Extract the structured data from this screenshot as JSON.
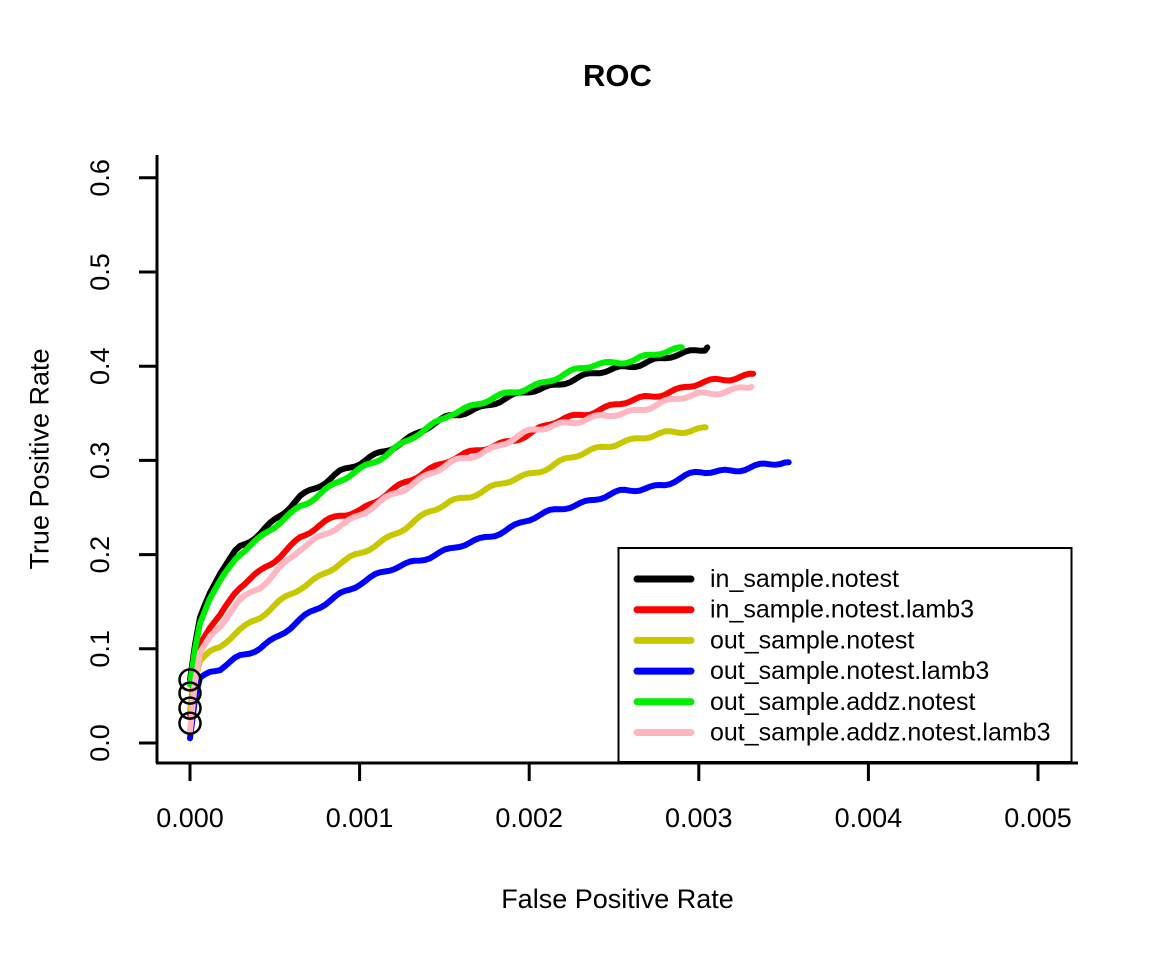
{
  "page": {
    "background": "#ffffff"
  },
  "chart_data": {
    "type": "line",
    "title": "ROC",
    "xlabel": "False Positive Rate",
    "ylabel": "True Positive Rate",
    "xlim": [
      -0.0002,
      0.00524
    ],
    "ylim": [
      -0.021,
      0.625
    ],
    "grid": false,
    "x_ticks": {
      "values": [
        0.0,
        0.001,
        0.002,
        0.003,
        0.004,
        0.005
      ],
      "labels": [
        "0.000",
        "0.001",
        "0.002",
        "0.003",
        "0.004",
        "0.005"
      ]
    },
    "y_ticks": {
      "values": [
        0.0,
        0.1,
        0.2,
        0.3,
        0.4,
        0.5,
        0.6
      ],
      "labels": [
        "0.0",
        "0.1",
        "0.2",
        "0.3",
        "0.4",
        "0.5",
        "0.6"
      ]
    },
    "legend": {
      "position": "bottomright"
    },
    "series": [
      {
        "name": "in_sample.notest",
        "color": "#000000",
        "points": [
          [
            0,
            0.067
          ],
          [
            3e-05,
            0.105
          ],
          [
            6e-05,
            0.134
          ],
          [
            0.00012,
            0.16
          ],
          [
            0.00018,
            0.181
          ],
          [
            0.00028,
            0.207
          ],
          [
            0.00041,
            0.223
          ],
          [
            0.00055,
            0.243
          ],
          [
            0.00065,
            0.261
          ],
          [
            0.00088,
            0.288
          ],
          [
            0.001,
            0.296
          ],
          [
            0.0012,
            0.315
          ],
          [
            0.0014,
            0.335
          ],
          [
            0.00153,
            0.346
          ],
          [
            0.0017,
            0.356
          ],
          [
            0.002,
            0.373
          ],
          [
            0.0022,
            0.383
          ],
          [
            0.00254,
            0.399
          ],
          [
            0.0028,
            0.408
          ],
          [
            0.00305,
            0.42
          ]
        ]
      },
      {
        "name": "in_sample.notest.lamb3",
        "color": "#FF0000",
        "points": [
          [
            0,
            0.03
          ],
          [
            2e-05,
            0.07
          ],
          [
            6e-05,
            0.106
          ],
          [
            0.00012,
            0.124
          ],
          [
            0.00018,
            0.136
          ],
          [
            0.00028,
            0.163
          ],
          [
            0.00041,
            0.181
          ],
          [
            0.00065,
            0.218
          ],
          [
            0.00088,
            0.242
          ],
          [
            0.001,
            0.247
          ],
          [
            0.0012,
            0.268
          ],
          [
            0.0014,
            0.29
          ],
          [
            0.00153,
            0.301
          ],
          [
            0.0017,
            0.31
          ],
          [
            0.002,
            0.328
          ],
          [
            0.0022,
            0.344
          ],
          [
            0.00254,
            0.36
          ],
          [
            0.0028,
            0.372
          ],
          [
            0.003,
            0.381
          ],
          [
            0.00332,
            0.392
          ]
        ]
      },
      {
        "name": "out_sample.notest",
        "color": "#C8C800",
        "points": [
          [
            0,
            0.035
          ],
          [
            2e-05,
            0.06
          ],
          [
            6e-05,
            0.088
          ],
          [
            0.00012,
            0.097
          ],
          [
            0.00018,
            0.102
          ],
          [
            0.00028,
            0.12
          ],
          [
            0.00041,
            0.133
          ],
          [
            0.00065,
            0.165
          ],
          [
            0.00088,
            0.19
          ],
          [
            0.001,
            0.2
          ],
          [
            0.0012,
            0.222
          ],
          [
            0.0014,
            0.243
          ],
          [
            0.00153,
            0.256
          ],
          [
            0.0017,
            0.266
          ],
          [
            0.002,
            0.285
          ],
          [
            0.0022,
            0.3
          ],
          [
            0.00254,
            0.32
          ],
          [
            0.0028,
            0.328
          ],
          [
            0.00304,
            0.335
          ]
        ]
      },
      {
        "name": "out_sample.notest.lamb3",
        "color": "#0000FF",
        "points": [
          [
            0,
            0.005
          ],
          [
            2e-05,
            0.04
          ],
          [
            6e-05,
            0.07
          ],
          [
            0.00012,
            0.076
          ],
          [
            0.00018,
            0.078
          ],
          [
            0.00028,
            0.09
          ],
          [
            0.00041,
            0.101
          ],
          [
            0.00065,
            0.13
          ],
          [
            0.00088,
            0.158
          ],
          [
            0.001,
            0.17
          ],
          [
            0.0012,
            0.185
          ],
          [
            0.0014,
            0.198
          ],
          [
            0.00153,
            0.205
          ],
          [
            0.0017,
            0.215
          ],
          [
            0.002,
            0.237
          ],
          [
            0.0022,
            0.25
          ],
          [
            0.00254,
            0.266
          ],
          [
            0.0028,
            0.275
          ],
          [
            0.003,
            0.287
          ],
          [
            0.0032,
            0.29
          ],
          [
            0.00353,
            0.298
          ]
        ]
      },
      {
        "name": "out_sample.addz.notest",
        "color": "#00EE00",
        "points": [
          [
            0,
            0.062
          ],
          [
            3e-05,
            0.1
          ],
          [
            6e-05,
            0.128
          ],
          [
            0.00012,
            0.155
          ],
          [
            0.00018,
            0.173
          ],
          [
            0.00028,
            0.2
          ],
          [
            0.00041,
            0.216
          ],
          [
            0.00065,
            0.252
          ],
          [
            0.00088,
            0.277
          ],
          [
            0.001,
            0.29
          ],
          [
            0.0012,
            0.312
          ],
          [
            0.0014,
            0.333
          ],
          [
            0.00153,
            0.35
          ],
          [
            0.0017,
            0.36
          ],
          [
            0.002,
            0.378
          ],
          [
            0.0022,
            0.39
          ],
          [
            0.0024,
            0.403
          ],
          [
            0.00262,
            0.406
          ],
          [
            0.0029,
            0.42
          ]
        ]
      },
      {
        "name": "out_sample.addz.notest.lamb3",
        "color": "#FFB6C1",
        "points": [
          [
            0,
            0.012
          ],
          [
            2e-05,
            0.055
          ],
          [
            6e-05,
            0.097
          ],
          [
            0.00012,
            0.113
          ],
          [
            0.00018,
            0.123
          ],
          [
            0.00028,
            0.15
          ],
          [
            0.00041,
            0.166
          ],
          [
            0.00065,
            0.205
          ],
          [
            0.00088,
            0.232
          ],
          [
            0.001,
            0.241
          ],
          [
            0.0012,
            0.264
          ],
          [
            0.0014,
            0.285
          ],
          [
            0.00153,
            0.296
          ],
          [
            0.0017,
            0.307
          ],
          [
            0.002,
            0.33
          ],
          [
            0.0022,
            0.34
          ],
          [
            0.00254,
            0.349
          ],
          [
            0.0028,
            0.362
          ],
          [
            0.003,
            0.37
          ],
          [
            0.00331,
            0.378
          ]
        ]
      }
    ],
    "start_markers": {
      "fpr": 0,
      "tpr_values": [
        0.067,
        0.053,
        0.037,
        0.021
      ]
    }
  }
}
